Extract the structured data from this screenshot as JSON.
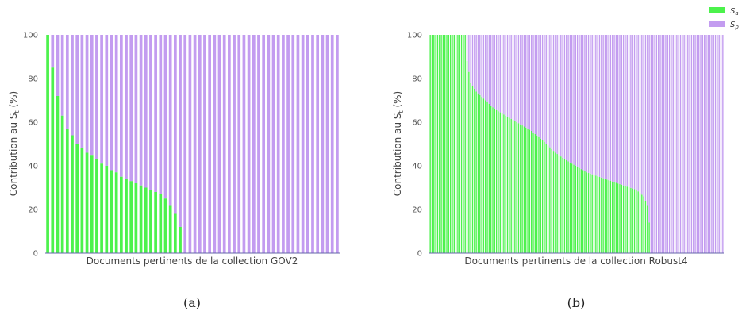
{
  "legend": {
    "items": [
      {
        "label": "S_a",
        "base": "S",
        "sub": "a",
        "color": "#4cf24c"
      },
      {
        "label": "S_p",
        "base": "S",
        "sub": "p",
        "color": "#c39cf0"
      }
    ]
  },
  "chart_data": [
    {
      "type": "bar",
      "stacked": true,
      "caption": "(a)",
      "xlabel": "Documents pertinents de la collection GOV2",
      "ylabel": "Contribution au S_t (%)",
      "ylabel_base": "Contribution au S",
      "ylabel_sub": "t",
      "ylabel_tail": " (%)",
      "ylim": [
        0,
        100
      ],
      "yticks": [
        0,
        20,
        40,
        60,
        80,
        100
      ],
      "grid": false,
      "n_documents": 60,
      "series": [
        {
          "name": "S_a",
          "values": [
            100,
            85,
            72,
            63,
            57,
            54,
            50,
            48,
            46,
            45,
            43,
            41,
            40,
            38,
            37,
            35,
            34,
            33,
            32,
            31,
            30,
            29,
            28,
            27,
            25,
            22,
            18,
            12,
            0,
            0,
            0,
            0,
            0,
            0,
            0,
            0,
            0,
            0,
            0,
            0,
            0,
            0,
            0,
            0,
            0,
            0,
            0,
            0,
            0,
            0,
            0,
            0,
            0,
            0,
            0,
            0,
            0,
            0,
            0,
            0
          ]
        },
        {
          "name": "S_p",
          "values": [
            0,
            15,
            28,
            37,
            43,
            46,
            50,
            52,
            54,
            55,
            57,
            59,
            60,
            62,
            63,
            65,
            66,
            67,
            68,
            69,
            70,
            71,
            72,
            73,
            75,
            78,
            82,
            88,
            100,
            100,
            100,
            100,
            100,
            100,
            100,
            100,
            100,
            100,
            100,
            100,
            100,
            100,
            100,
            100,
            100,
            100,
            100,
            100,
            100,
            100,
            100,
            100,
            100,
            100,
            100,
            100,
            100,
            100,
            100,
            100
          ]
        }
      ]
    },
    {
      "type": "bar",
      "stacked": true,
      "caption": "(b)",
      "xlabel": "Documents pertinents de la collection Robust4",
      "ylabel": "Contribution au S_t (%)",
      "ylabel_base": "Contribution au S",
      "ylabel_sub": "t",
      "ylabel_tail": " (%)",
      "ylim": [
        0,
        100
      ],
      "yticks": [
        0,
        20,
        40,
        60,
        80,
        100
      ],
      "grid": false,
      "n_documents": 160,
      "sa_profile": [
        [
          0,
          100
        ],
        [
          19,
          100
        ],
        [
          20,
          88
        ],
        [
          22,
          78
        ],
        [
          25,
          74
        ],
        [
          30,
          70
        ],
        [
          35,
          66
        ],
        [
          45,
          61
        ],
        [
          55,
          56
        ],
        [
          62,
          51
        ],
        [
          68,
          46
        ],
        [
          75,
          42
        ],
        [
          85,
          37
        ],
        [
          95,
          34
        ],
        [
          105,
          31
        ],
        [
          112,
          29
        ],
        [
          116,
          26
        ],
        [
          118,
          22
        ],
        [
          119,
          14
        ],
        [
          120,
          0
        ],
        [
          159,
          0
        ]
      ]
    }
  ]
}
